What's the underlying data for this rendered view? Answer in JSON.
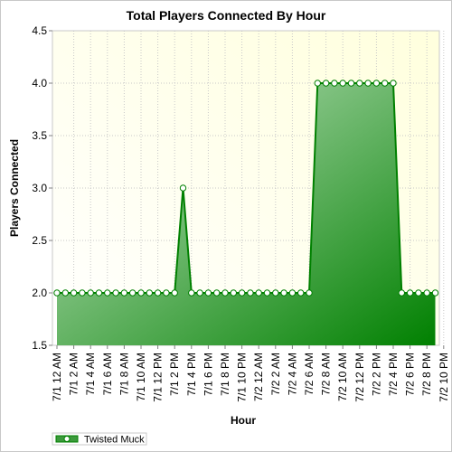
{
  "chart_data": {
    "type": "area",
    "title": "Total Players Connected By Hour",
    "xlabel": "Hour",
    "ylabel": "Players Connected",
    "ylim": [
      1.5,
      4.5
    ],
    "yticks": [
      "1.5",
      "2.0",
      "2.5",
      "3.0",
      "3.5",
      "4.0",
      "4.5"
    ],
    "grid": true,
    "legend_position": "bottom-left",
    "x_tick_labels": [
      "7/1 12 AM",
      "7/1 2 AM",
      "7/1 4 AM",
      "7/1 6 AM",
      "7/1 8 AM",
      "7/1 10 AM",
      "7/1 12 PM",
      "7/1 2 PM",
      "7/1 4 PM",
      "7/1 6 PM",
      "7/1 8 PM",
      "7/1 10 PM",
      "7/2 12 AM",
      "7/2 2 AM",
      "7/2 4 AM",
      "7/2 6 AM",
      "7/2 8 AM",
      "7/2 10 AM",
      "7/2 12 PM",
      "7/2 2 PM",
      "7/2 4 PM",
      "7/2 6 PM",
      "7/2 8 PM",
      "7/2 10 PM"
    ],
    "series": [
      {
        "name": "Twisted Muck",
        "color": "#008000",
        "values": [
          2,
          2,
          2,
          2,
          2,
          2,
          2,
          2,
          2,
          2,
          2,
          2,
          2,
          2,
          2,
          3,
          2,
          2,
          2,
          2,
          2,
          2,
          2,
          2,
          2,
          2,
          2,
          2,
          2,
          2,
          2,
          4,
          4,
          4,
          4,
          4,
          4,
          4,
          4,
          4,
          4,
          2,
          2,
          2,
          2,
          2
        ]
      }
    ]
  },
  "colors": {
    "plot_background": "#ffffe6",
    "area_light": "#b4dcb4",
    "area_dark": "#008000",
    "line": "#008000"
  }
}
